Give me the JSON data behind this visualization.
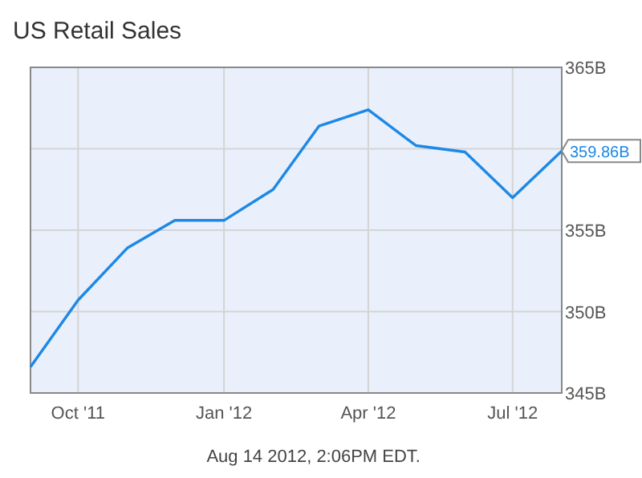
{
  "chart_data": {
    "type": "line",
    "title": "US Retail Sales",
    "x": [
      "2011-09",
      "2011-10",
      "2011-11",
      "2011-12",
      "2012-01",
      "2012-02",
      "2012-03",
      "2012-04",
      "2012-05",
      "2012-06",
      "2012-07",
      "2012-08"
    ],
    "series": [
      {
        "color": "#1e88e5",
        "values": [
          346.6,
          350.7,
          353.9,
          355.6,
          355.6,
          357.5,
          361.4,
          362.4,
          360.2,
          359.8,
          357.0,
          359.86
        ],
        "value_labels": [
          null,
          null,
          null,
          null,
          null,
          null,
          null,
          null,
          null,
          null,
          null,
          "359.86B"
        ]
      }
    ],
    "xlim": [
      "2011-09",
      "2012-08"
    ],
    "xticks": [
      {
        "value": "2011-10",
        "label": "Oct '11"
      },
      {
        "value": "2012-01",
        "label": "Jan '12"
      },
      {
        "value": "2012-04",
        "label": "Apr '12"
      },
      {
        "value": "2012-07",
        "label": "Jul '12"
      }
    ],
    "ylim": [
      345,
      365
    ],
    "yticks": [
      {
        "value": 345,
        "label": "345B"
      },
      {
        "value": 350,
        "label": "350B"
      },
      {
        "value": 355,
        "label": "355B"
      },
      {
        "value": 360,
        "label": null
      },
      {
        "value": 365,
        "label": "365B"
      }
    ],
    "grid": true,
    "marker": "none",
    "line_style": "solid",
    "annotations": [
      "Aug 14 2012, 2:06PM EDT."
    ]
  }
}
